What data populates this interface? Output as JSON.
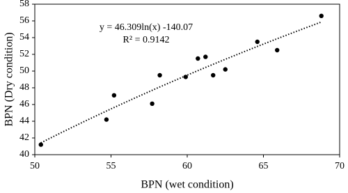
{
  "chart_data": {
    "type": "scatter",
    "x_label": "BPN (wet condition)",
    "y_label": "BPN (Dry condition)",
    "annotations": [
      "y = 46.309ln(x) -140.07",
      "R² = 0.9142"
    ],
    "trendline": "logarithmic",
    "series": [
      {
        "color": "#000000",
        "x": [
          50.4,
          54.7,
          55.2,
          57.7,
          58.2,
          59.9,
          60.7,
          61.2,
          61.7,
          62.5,
          64.6,
          65.9,
          68.8
        ],
        "values": [
          41.2,
          44.2,
          47.1,
          46.1,
          49.5,
          49.3,
          51.5,
          51.7,
          49.5,
          50.2,
          53.5,
          52.5,
          56.6
        ]
      }
    ],
    "xlim": [
      50,
      70
    ],
    "xticks": [
      50,
      55,
      60,
      65,
      70
    ],
    "ylim": [
      40,
      58
    ],
    "yticks": [
      40,
      42,
      44,
      46,
      48,
      50,
      52,
      54,
      56,
      58
    ]
  }
}
